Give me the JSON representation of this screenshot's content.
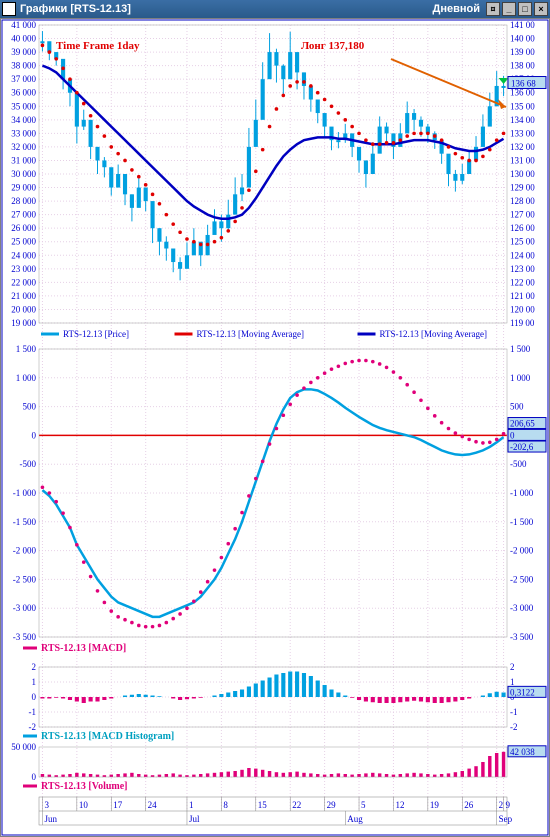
{
  "window": {
    "title": "Графики [RTS-12.13]",
    "right_label": "Дневной"
  },
  "annotations": {
    "timeframe": "Time Frame 1day",
    "long_pos": "Лонг 137,180"
  },
  "colors": {
    "bg": "#ffffff",
    "grid": "#e6d0e6",
    "axis_text": "#0000d0",
    "candle": "#00a0e0",
    "ma_fast": "#e00000",
    "ma_slow": "#0000c0",
    "macd_line": "#00a0e0",
    "macd_signal": "#e0007a",
    "macd_zero": "#e00000",
    "vol": "#e0007a",
    "arrow": "#e06000",
    "marker": "#00c040"
  },
  "price_panel": {
    "left_axis": {
      "min": 19000,
      "max": 41000,
      "step": 1000,
      "fmt": "### ###"
    },
    "right_axis": {
      "min": 119.0,
      "max": 141.0,
      "step": 1.0,
      "fmt": "### ##"
    },
    "current_price_box": "136 68",
    "legend": [
      {
        "color": "#00a0e0",
        "text": "RTS-12.13 [Price]"
      },
      {
        "color": "#e00000",
        "text": "RTS-12.13 [Moving Average]"
      },
      {
        "color": "#0000c0",
        "text": "RTS-12.13 [Moving Average]"
      }
    ],
    "candles_close": [
      39.8,
      39.0,
      38.5,
      37.0,
      36.0,
      33.5,
      34.0,
      32.0,
      31.0,
      30.5,
      29.0,
      30.0,
      28.5,
      27.5,
      29.0,
      28.0,
      26.0,
      25.0,
      24.5,
      23.5,
      23.0,
      24.0,
      25.0,
      24.0,
      25.5,
      26.5,
      26.0,
      27.0,
      28.5,
      29.0,
      32.0,
      34.0,
      37.0,
      39.0,
      38.0,
      37.0,
      39.0,
      37.5,
      36.5,
      35.5,
      34.5,
      33.5,
      32.5,
      32.5,
      33.0,
      32.0,
      31.0,
      30.0,
      31.5,
      33.5,
      33.0,
      32.0,
      33.0,
      34.5,
      34.0,
      33.5,
      33.0,
      32.5,
      31.5,
      30.0,
      29.5,
      30.0,
      31.0,
      32.0,
      33.5,
      35.0,
      36.5,
      36.5
    ],
    "candles_hl": [
      1.5,
      1.2,
      1.0,
      1.5,
      2.0,
      2.5,
      1.5,
      1.8,
      2.0,
      1.5,
      1.2,
      1.4,
      1.6,
      2.0,
      1.8,
      1.5,
      2.2,
      2.0,
      1.8,
      1.5,
      1.7,
      1.9,
      2.0,
      1.6,
      1.5,
      1.8,
      2.0,
      2.2,
      2.5,
      2.0,
      2.8,
      3.0,
      2.5,
      2.8,
      2.5,
      2.2,
      3.0,
      2.5,
      2.0,
      1.8,
      1.5,
      1.6,
      1.5,
      1.2,
      1.4,
      1.5,
      1.8,
      2.0,
      1.7,
      1.5,
      1.6,
      1.8,
      1.5,
      1.7,
      1.6,
      1.5,
      1.4,
      1.3,
      1.5,
      1.8,
      1.6,
      1.5,
      1.4,
      1.6,
      1.8,
      2.0,
      2.2,
      1.5
    ],
    "ma_fast": [
      39.5,
      39.0,
      38.5,
      37.8,
      37.0,
      36.0,
      35.2,
      34.3,
      33.5,
      32.8,
      32.0,
      31.5,
      31.0,
      30.3,
      29.8,
      29.2,
      28.5,
      27.8,
      27.0,
      26.3,
      25.7,
      25.2,
      25.0,
      24.8,
      24.8,
      25.0,
      25.3,
      25.8,
      26.5,
      27.5,
      28.8,
      30.2,
      31.8,
      33.5,
      34.8,
      35.8,
      36.5,
      36.8,
      36.8,
      36.5,
      36.0,
      35.5,
      35.0,
      34.5,
      34.0,
      33.5,
      33.0,
      32.5,
      32.2,
      32.2,
      32.3,
      32.3,
      32.5,
      32.8,
      33.0,
      33.0,
      33.0,
      32.8,
      32.5,
      32.0,
      31.5,
      31.2,
      31.0,
      31.0,
      31.3,
      31.8,
      32.5,
      33.0
    ],
    "ma_slow": [
      38.0,
      37.8,
      37.5,
      37.0,
      36.5,
      36.0,
      35.5,
      35.0,
      34.5,
      34.0,
      33.5,
      33.0,
      32.5,
      32.0,
      31.5,
      31.0,
      30.5,
      30.0,
      29.5,
      29.0,
      28.5,
      28.0,
      27.6,
      27.3,
      27.0,
      26.8,
      26.7,
      26.7,
      26.8,
      27.0,
      27.5,
      28.2,
      29.0,
      29.8,
      30.6,
      31.3,
      31.8,
      32.2,
      32.5,
      32.6,
      32.7,
      32.7,
      32.7,
      32.6,
      32.6,
      32.5,
      32.4,
      32.3,
      32.2,
      32.2,
      32.2,
      32.2,
      32.3,
      32.4,
      32.5,
      32.5,
      32.5,
      32.4,
      32.3,
      32.1,
      31.9,
      31.8,
      31.7,
      31.7,
      31.8,
      32.0,
      32.3,
      32.6
    ]
  },
  "macd_panel": {
    "axis": {
      "min": -3500,
      "max": 1500,
      "step": 500
    },
    "right_boxes": [
      "206,65",
      "0",
      "-202,6"
    ],
    "macd": [
      -950,
      -1050,
      -1200,
      -1400,
      -1600,
      -1900,
      -2100,
      -2300,
      -2500,
      -2650,
      -2800,
      -2900,
      -2950,
      -3000,
      -3050,
      -3100,
      -3150,
      -3150,
      -3100,
      -3050,
      -3000,
      -2950,
      -2900,
      -2800,
      -2650,
      -2500,
      -2300,
      -2050,
      -1800,
      -1500,
      -1150,
      -800,
      -450,
      -100,
      200,
      450,
      650,
      750,
      800,
      800,
      780,
      720,
      650,
      570,
      480,
      400,
      320,
      250,
      180,
      130,
      90,
      60,
      30,
      0,
      -30,
      -80,
      -140,
      -200,
      -260,
      -300,
      -330,
      -340,
      -330,
      -300,
      -260,
      -200,
      -120,
      -30
    ],
    "signal": [
      -900,
      -1000,
      -1150,
      -1350,
      -1600,
      -1900,
      -2200,
      -2450,
      -2700,
      -2900,
      -3050,
      -3150,
      -3200,
      -3250,
      -3300,
      -3320,
      -3320,
      -3300,
      -3250,
      -3180,
      -3100,
      -3000,
      -2880,
      -2720,
      -2540,
      -2340,
      -2120,
      -1880,
      -1620,
      -1340,
      -1050,
      -750,
      -450,
      -150,
      120,
      350,
      540,
      700,
      820,
      920,
      1000,
      1080,
      1150,
      1200,
      1250,
      1280,
      1300,
      1300,
      1280,
      1240,
      1180,
      1100,
      1000,
      880,
      750,
      610,
      470,
      340,
      220,
      120,
      40,
      -20,
      -70,
      -110,
      -130,
      -120,
      -70,
      30
    ],
    "legend": {
      "color": "#e0007a",
      "text": "RTS-12.13 [MACD]"
    }
  },
  "hist_panel": {
    "axis": {
      "min": -2,
      "max": 2,
      "step": 1
    },
    "right_box": "0,3122",
    "values": [
      -0.1,
      -0.1,
      -0.05,
      -0.1,
      -0.2,
      -0.3,
      -0.4,
      -0.3,
      -0.3,
      -0.2,
      -0.1,
      0.0,
      0.1,
      0.15,
      0.2,
      0.15,
      0.1,
      0.05,
      0.0,
      -0.1,
      -0.2,
      -0.15,
      -0.1,
      -0.05,
      0.0,
      0.1,
      0.2,
      0.3,
      0.4,
      0.5,
      0.7,
      0.9,
      1.1,
      1.3,
      1.5,
      1.6,
      1.7,
      1.7,
      1.6,
      1.4,
      1.1,
      0.8,
      0.5,
      0.3,
      0.1,
      -0.05,
      -0.2,
      -0.3,
      -0.35,
      -0.4,
      -0.4,
      -0.4,
      -0.35,
      -0.3,
      -0.25,
      -0.3,
      -0.35,
      -0.4,
      -0.4,
      -0.35,
      -0.3,
      -0.2,
      -0.1,
      0.0,
      0.1,
      0.25,
      0.35,
      0.3
    ],
    "legend": {
      "color": "#00a0e0",
      "text": "RTS-12.13 [MACD Histogram]"
    }
  },
  "vol_panel": {
    "axis": {
      "min": 0,
      "max": 50000,
      "step": 50000
    },
    "right_box": "42 038",
    "values": [
      5,
      4,
      3,
      4,
      5,
      7,
      6,
      5,
      4,
      3,
      4,
      5,
      6,
      7,
      5,
      4,
      3,
      4,
      5,
      6,
      4,
      3,
      4,
      5,
      6,
      7,
      8,
      9,
      10,
      12,
      15,
      14,
      12,
      10,
      8,
      7,
      8,
      9,
      7,
      6,
      5,
      4,
      5,
      6,
      5,
      4,
      5,
      6,
      7,
      6,
      5,
      4,
      5,
      6,
      7,
      6,
      5,
      4,
      5,
      6,
      8,
      10,
      14,
      18,
      25,
      35,
      40,
      42
    ],
    "legend": {
      "color": "#e0007a",
      "text": "RTS-12.13 [Volume]"
    }
  },
  "time_axis": {
    "months": [
      {
        "label": "Jun",
        "pos": 0
      },
      {
        "label": "Jul",
        "pos": 21
      },
      {
        "label": "Aug",
        "pos": 44
      },
      {
        "label": "Sep",
        "pos": 66
      }
    ],
    "days": [
      {
        "label": "3",
        "pos": 0
      },
      {
        "label": "10",
        "pos": 5
      },
      {
        "label": "17",
        "pos": 10
      },
      {
        "label": "24",
        "pos": 15
      },
      {
        "label": "1",
        "pos": 21
      },
      {
        "label": "8",
        "pos": 26
      },
      {
        "label": "15",
        "pos": 31
      },
      {
        "label": "22",
        "pos": 36
      },
      {
        "label": "29",
        "pos": 41
      },
      {
        "label": "5",
        "pos": 46
      },
      {
        "label": "12",
        "pos": 51
      },
      {
        "label": "19",
        "pos": 56
      },
      {
        "label": "26",
        "pos": 61
      },
      {
        "label": "2",
        "pos": 66
      },
      {
        "label": "9",
        "pos": 67
      }
    ]
  }
}
